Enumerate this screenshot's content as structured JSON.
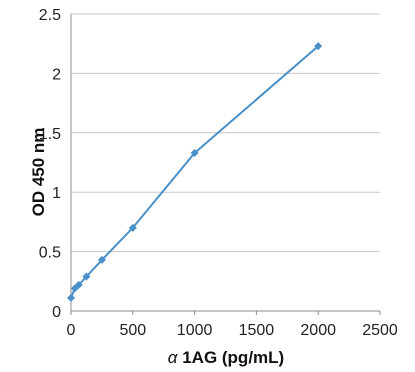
{
  "chart_data": {
    "type": "line",
    "title": "",
    "xlabel_prefix": "α",
    "xlabel_main": " 1AG (pg/mL)",
    "ylabel": "OD 450 nm",
    "xlim": [
      0,
      2500
    ],
    "ylim": [
      0,
      2.5
    ],
    "x_ticks": [
      0,
      500,
      1000,
      1500,
      2000,
      2500
    ],
    "y_ticks": [
      0,
      0.5,
      1,
      1.5,
      2,
      2.5
    ],
    "y_tick_labels": [
      "0",
      "0.5",
      "1",
      "1.5",
      "2",
      "2.5"
    ],
    "grid": true,
    "legend": "none",
    "series": [
      {
        "x": [
          0,
          31.25,
          62.5,
          125,
          250,
          500,
          1000,
          2000
        ],
        "y": [
          0.11,
          0.19,
          0.22,
          0.29,
          0.43,
          0.7,
          1.33,
          2.23
        ],
        "color": "#4a90c8",
        "marker": "diamond"
      }
    ],
    "colors": {
      "line": "#4a90c8",
      "marker": "#4a90c8",
      "grid": "#c8c8c8",
      "axis": "#8c8c8c"
    }
  }
}
